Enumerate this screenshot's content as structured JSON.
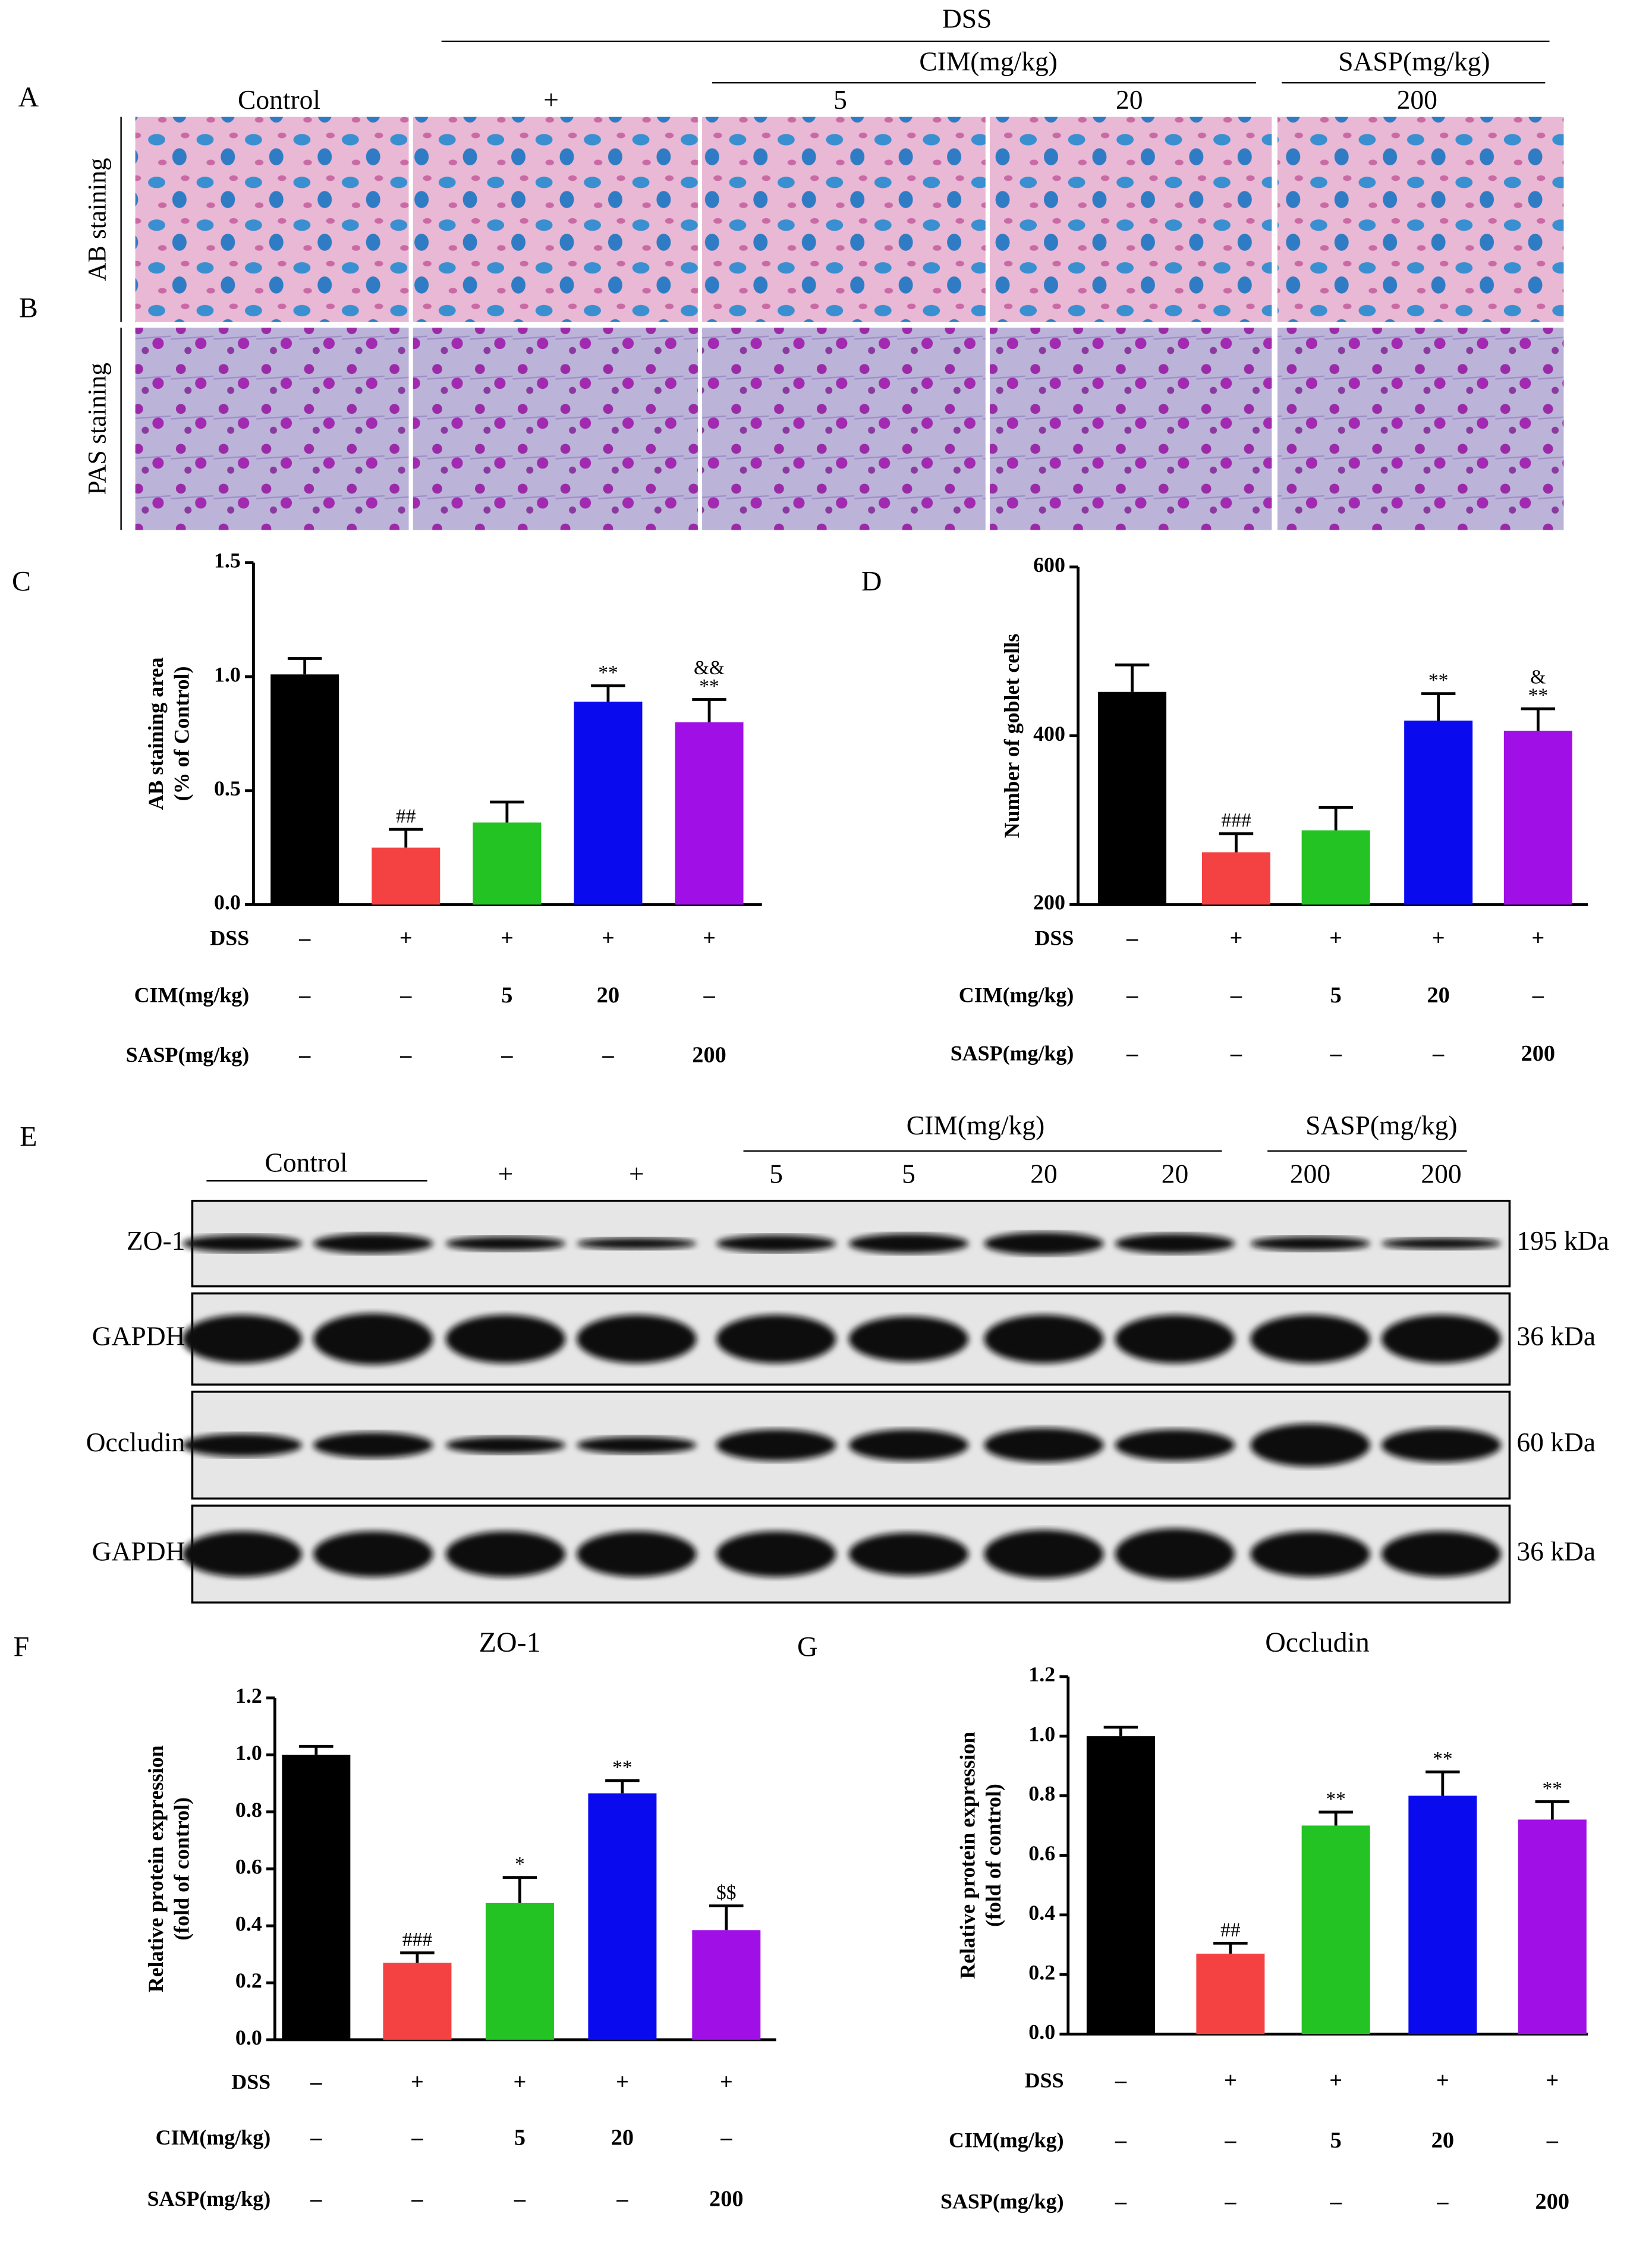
{
  "histology": {
    "header": {
      "dss": "DSS",
      "cim": "CIM(mg/kg)",
      "sasp": "SASP(mg/kg)",
      "groups": [
        "Control",
        "+",
        "5",
        "20",
        "200"
      ]
    },
    "rows": [
      {
        "panel": "A",
        "label": "AB staining"
      },
      {
        "panel": "B",
        "label": "PAS staining"
      }
    ]
  },
  "western": {
    "panel": "E",
    "header": {
      "control": "Control",
      "cim": "CIM(mg/kg)",
      "sasp": "SASP(mg/kg)",
      "lanes": [
        "+",
        "+",
        "5",
        "5",
        "20",
        "20",
        "200",
        "200"
      ]
    },
    "blots": [
      {
        "protein": "ZO-1",
        "size": "195 kDa"
      },
      {
        "protein": "GAPDH",
        "size": "36 kDa"
      },
      {
        "protein": "Occludin",
        "size": "60 kDa"
      },
      {
        "protein": "GAPDH",
        "size": "36 kDa"
      }
    ]
  },
  "chart_data": [
    {
      "type": "bar",
      "panel": "C",
      "ylabel": [
        "AB staining area",
        "(% of Control)"
      ],
      "values": [
        1.01,
        0.25,
        0.36,
        0.89,
        0.8
      ],
      "errors": [
        0.07,
        0.08,
        0.09,
        0.07,
        0.1
      ],
      "colors": [
        "#000000",
        "#f44242",
        "#22c322",
        "#0a0aee",
        "#a010e6"
      ],
      "annotations": [
        null,
        [
          "##"
        ],
        null,
        [
          "**"
        ],
        [
          "&&",
          "**"
        ]
      ],
      "ylim": [
        0,
        1.5
      ],
      "yticks": [
        {
          "value": 0,
          "label": "0.0"
        },
        0.5,
        {
          "value": 1,
          "label": "1.0"
        },
        1.5
      ],
      "treatments": [
        {
          "label": "DSS",
          "cells": [
            "–",
            "+",
            "+",
            "+",
            "+"
          ]
        },
        {
          "label": "CIM(mg/kg)",
          "cells": [
            "–",
            "–",
            "5",
            "20",
            "–"
          ]
        },
        {
          "label": "SASP(mg/kg)",
          "cells": [
            "–",
            "–",
            "–",
            "–",
            "200"
          ]
        }
      ]
    },
    {
      "type": "bar",
      "panel": "D",
      "ylabel": [
        "Number of goblet cells"
      ],
      "values": [
        452,
        262,
        288,
        418,
        406
      ],
      "errors": [
        32,
        22,
        27,
        32,
        26
      ],
      "colors": [
        "#000000",
        "#f44242",
        "#22c322",
        "#0a0aee",
        "#a010e6"
      ],
      "annotations": [
        null,
        [
          "###"
        ],
        null,
        [
          "**"
        ],
        [
          "&",
          "**"
        ]
      ],
      "ylim": [
        200,
        600
      ],
      "yticks": [
        200,
        400,
        600
      ],
      "treatments": [
        {
          "label": "DSS",
          "cells": [
            "–",
            "+",
            "+",
            "+",
            "+"
          ]
        },
        {
          "label": "CIM(mg/kg)",
          "cells": [
            "–",
            "–",
            "5",
            "20",
            "–"
          ]
        },
        {
          "label": "SASP(mg/kg)",
          "cells": [
            "–",
            "–",
            "–",
            "–",
            "200"
          ]
        }
      ]
    },
    {
      "type": "bar",
      "panel": "F",
      "title": "ZO-1",
      "ylabel": [
        "Relative protein expression",
        "(fold of control)"
      ],
      "values": [
        1.0,
        0.27,
        0.48,
        0.865,
        0.385
      ],
      "errors": [
        0.03,
        0.035,
        0.09,
        0.045,
        0.085
      ],
      "colors": [
        "#000000",
        "#f44242",
        "#22c322",
        "#0a0aee",
        "#a010e6"
      ],
      "annotations": [
        null,
        [
          "###"
        ],
        [
          "*"
        ],
        [
          "**"
        ],
        [
          "$$"
        ]
      ],
      "ylim": [
        0,
        1.2
      ],
      "yticks": [
        {
          "value": 0,
          "label": "0.0"
        },
        0.2,
        0.4,
        0.6,
        0.8,
        {
          "value": 1,
          "label": "1.0"
        },
        1.2
      ],
      "treatments": [
        {
          "label": "DSS",
          "cells": [
            "–",
            "+",
            "+",
            "+",
            "+"
          ]
        },
        {
          "label": "CIM(mg/kg)",
          "cells": [
            "–",
            "–",
            "5",
            "20",
            "–"
          ]
        },
        {
          "label": "SASP(mg/kg)",
          "cells": [
            "–",
            "–",
            "–",
            "–",
            "200"
          ]
        }
      ]
    },
    {
      "type": "bar",
      "panel": "G",
      "title": "Occludin",
      "ylabel": [
        "Relative protein expression",
        "(fold of control)"
      ],
      "values": [
        1.0,
        0.27,
        0.7,
        0.8,
        0.72
      ],
      "errors": [
        0.03,
        0.035,
        0.045,
        0.08,
        0.06
      ],
      "colors": [
        "#000000",
        "#f44242",
        "#22c322",
        "#0a0aee",
        "#a010e6"
      ],
      "annotations": [
        null,
        [
          "##"
        ],
        [
          "**"
        ],
        [
          "**"
        ],
        [
          "**"
        ]
      ],
      "ylim": [
        0,
        1.2
      ],
      "yticks": [
        {
          "value": 0,
          "label": "0.0"
        },
        0.2,
        0.4,
        0.6,
        0.8,
        {
          "value": 1,
          "label": "1.0"
        },
        1.2
      ],
      "treatments": [
        {
          "label": "DSS",
          "cells": [
            "–",
            "+",
            "+",
            "+",
            "+"
          ]
        },
        {
          "label": "CIM(mg/kg)",
          "cells": [
            "–",
            "–",
            "5",
            "20",
            "–"
          ]
        },
        {
          "label": "SASP(mg/kg)",
          "cells": [
            "–",
            "–",
            "–",
            "–",
            "200"
          ]
        }
      ]
    }
  ]
}
